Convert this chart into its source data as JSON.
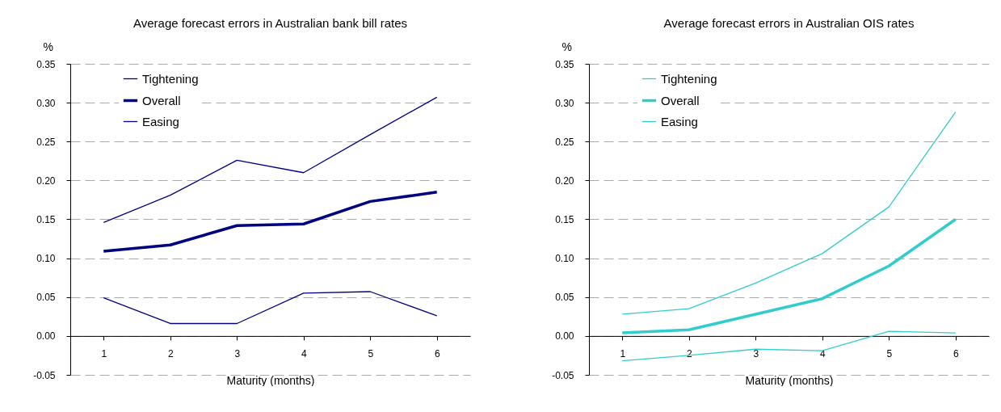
{
  "chart_data": [
    {
      "type": "line",
      "title": "Average forecast errors in Australian bank bill rates",
      "ylabel": "%",
      "xlabel": "Maturity (months)",
      "categories": [
        "1",
        "2",
        "3",
        "4",
        "5",
        "6"
      ],
      "series": [
        {
          "name": "Tightening",
          "color": "#000080",
          "values": [
            0.146,
            0.181,
            0.226,
            0.21,
            0.259,
            0.307
          ]
        },
        {
          "name": "Overall",
          "color": "#000080",
          "values": [
            0.109,
            0.117,
            0.142,
            0.144,
            0.173,
            0.185
          ]
        },
        {
          "name": "Easing",
          "color": "#000080",
          "values": [
            0.049,
            0.016,
            0.016,
            0.055,
            0.057,
            0.026
          ]
        }
      ],
      "ylim": [
        -0.05,
        0.35
      ],
      "yticks": [
        {
          "value": -0.05,
          "label": "-0.05"
        },
        {
          "value": 0,
          "label": "0.00"
        },
        {
          "value": 0.05,
          "label": "0.05"
        },
        {
          "value": 0.1,
          "label": "0.10"
        },
        {
          "value": 0.15,
          "label": "0.15"
        },
        {
          "value": 0.2,
          "label": "0.20"
        },
        {
          "value": 0.25,
          "label": "0.25"
        },
        {
          "value": 0.3,
          "label": "0.30"
        },
        {
          "value": 0.35,
          "label": "0.35"
        }
      ],
      "grid": "y",
      "legend": "top left",
      "marker": "none",
      "line_style": "solid"
    },
    {
      "type": "line",
      "title": "Average forecast errors in Australian OIS rates",
      "ylabel": "%",
      "xlabel": "Maturity (months)",
      "categories": [
        "1",
        "2",
        "3",
        "4",
        "5",
        "6"
      ],
      "series": [
        {
          "name": "Tightening",
          "color": "#33cccc",
          "values": [
            0.028,
            0.035,
            0.068,
            0.106,
            0.166,
            0.288
          ]
        },
        {
          "name": "Overall",
          "color": "#33cccc",
          "values": [
            0.004,
            0.008,
            0.028,
            0.048,
            0.09,
            0.15
          ]
        },
        {
          "name": "Easing",
          "color": "#33cccc",
          "values": [
            -0.032,
            -0.025,
            -0.017,
            -0.019,
            0.006,
            0.004
          ]
        }
      ],
      "ylim": [
        -0.05,
        0.35
      ],
      "yticks": [
        {
          "value": -0.05,
          "label": "-0.05"
        },
        {
          "value": 0,
          "label": "0.00"
        },
        {
          "value": 0.05,
          "label": "0.05"
        },
        {
          "value": 0.1,
          "label": "0.10"
        },
        {
          "value": 0.15,
          "label": "0.15"
        },
        {
          "value": 0.2,
          "label": "0.20"
        },
        {
          "value": 0.25,
          "label": "0.25"
        },
        {
          "value": 0.3,
          "label": "0.30"
        },
        {
          "value": 0.35,
          "label": "0.35"
        }
      ],
      "grid": "y",
      "legend": "top left",
      "marker": "none",
      "line_style": "solid"
    }
  ]
}
